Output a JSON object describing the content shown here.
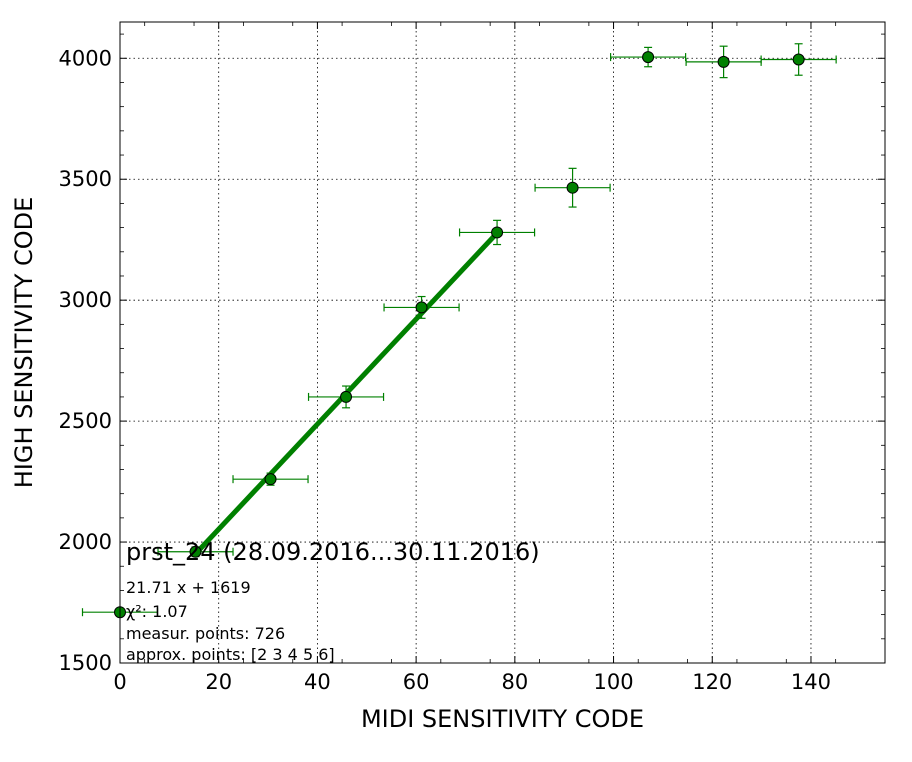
{
  "chart_data": {
    "type": "scatter",
    "title": "",
    "xlabel": "MIDI SENSITIVITY CODE",
    "ylabel": "HIGH SENSITIVITY CODE",
    "xlim": [
      0,
      155
    ],
    "ylim": [
      1500,
      4150
    ],
    "x_ticks": [
      0,
      20,
      40,
      60,
      80,
      100,
      120,
      140
    ],
    "y_ticks": [
      1500,
      2000,
      2500,
      3000,
      3500,
      4000
    ],
    "grid": true,
    "colors": {
      "series": "#008000",
      "marker_edge": "#000000"
    },
    "points": [
      {
        "x": 0,
        "y": 1710,
        "xerr": 7.6,
        "yerr": 0
      },
      {
        "x": 15.3,
        "y": 1960,
        "xerr": 7.6,
        "yerr": 20
      },
      {
        "x": 30.5,
        "y": 2260,
        "xerr": 7.6,
        "yerr": 25
      },
      {
        "x": 45.8,
        "y": 2600,
        "xerr": 7.6,
        "yerr": 45
      },
      {
        "x": 61.1,
        "y": 2970,
        "xerr": 7.6,
        "yerr": 45
      },
      {
        "x": 76.4,
        "y": 3280,
        "xerr": 7.6,
        "yerr": 50
      },
      {
        "x": 91.7,
        "y": 3465,
        "xerr": 7.6,
        "yerr": 80
      },
      {
        "x": 107.0,
        "y": 4005,
        "xerr": 7.6,
        "yerr": 40
      },
      {
        "x": 122.3,
        "y": 3985,
        "xerr": 7.6,
        "yerr": 65
      },
      {
        "x": 137.5,
        "y": 3995,
        "xerr": 7.6,
        "yerr": 65
      }
    ],
    "fit": {
      "slope": 21.71,
      "intercept": 1619,
      "x_range": [
        15.3,
        76.4
      ]
    },
    "annotations": {
      "title": "prst_24 (28.09.2016...30.11.2016)",
      "equation": "21.71 x + 1619",
      "chi2": "χ²: 1.07",
      "measur_points": "measur. points: 726",
      "approx_points": "approx. points: [2 3 4 5 6]"
    }
  }
}
